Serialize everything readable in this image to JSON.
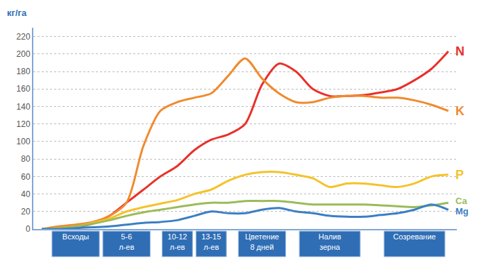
{
  "chart_data": {
    "type": "line",
    "y_label": "кг/га",
    "categories": [
      null,
      null,
      "Всходы",
      null,
      null,
      "5-6 л-ев",
      null,
      null,
      "10-12 л-ев",
      null,
      "13-15 л-ев",
      null,
      null,
      "Цветение 8 дней",
      null,
      null,
      null,
      "Налив зерна",
      null,
      null,
      null,
      null,
      "Созревание",
      null,
      null
    ],
    "series": [
      {
        "name": "N",
        "color": "#e8312a",
        "values": [
          0,
          0,
          2,
          6,
          15,
          30,
          45,
          60,
          72,
          90,
          102,
          108,
          120,
          165,
          189,
          180,
          160,
          152,
          152,
          153,
          156,
          160,
          170,
          183,
          203
        ]
      },
      {
        "name": "K",
        "color": "#f08a2e",
        "values": [
          0,
          3,
          5,
          8,
          15,
          30,
          95,
          135,
          145,
          150,
          155,
          175,
          195,
          172,
          155,
          145,
          145,
          150,
          152,
          152,
          150,
          150,
          147,
          142,
          135
        ]
      },
      {
        "name": "P",
        "color": "#f5c22b",
        "values": [
          0,
          1,
          3,
          7,
          12,
          20,
          25,
          29,
          33,
          40,
          45,
          55,
          62,
          65,
          65,
          62,
          58,
          48,
          52,
          52,
          50,
          48,
          52,
          60,
          62
        ]
      },
      {
        "name": "Ca",
        "color": "#9bbb59",
        "values": [
          0,
          1,
          3,
          6,
          10,
          15,
          19,
          22,
          25,
          28,
          30,
          30,
          32,
          32,
          32,
          30,
          28,
          28,
          28,
          28,
          27,
          26,
          25,
          27,
          30
        ]
      },
      {
        "name": "Mg",
        "color": "#3b7fc4",
        "values": [
          0,
          0,
          1,
          2,
          3,
          5,
          7,
          8,
          10,
          15,
          20,
          18,
          18,
          22,
          24,
          20,
          18,
          15,
          14,
          14,
          16,
          18,
          22,
          28,
          22
        ]
      }
    ],
    "ylim": [
      0,
      230
    ],
    "yticks": [
      0,
      20,
      40,
      60,
      80,
      100,
      120,
      140,
      160,
      180,
      200,
      220
    ],
    "grid": true
  }
}
